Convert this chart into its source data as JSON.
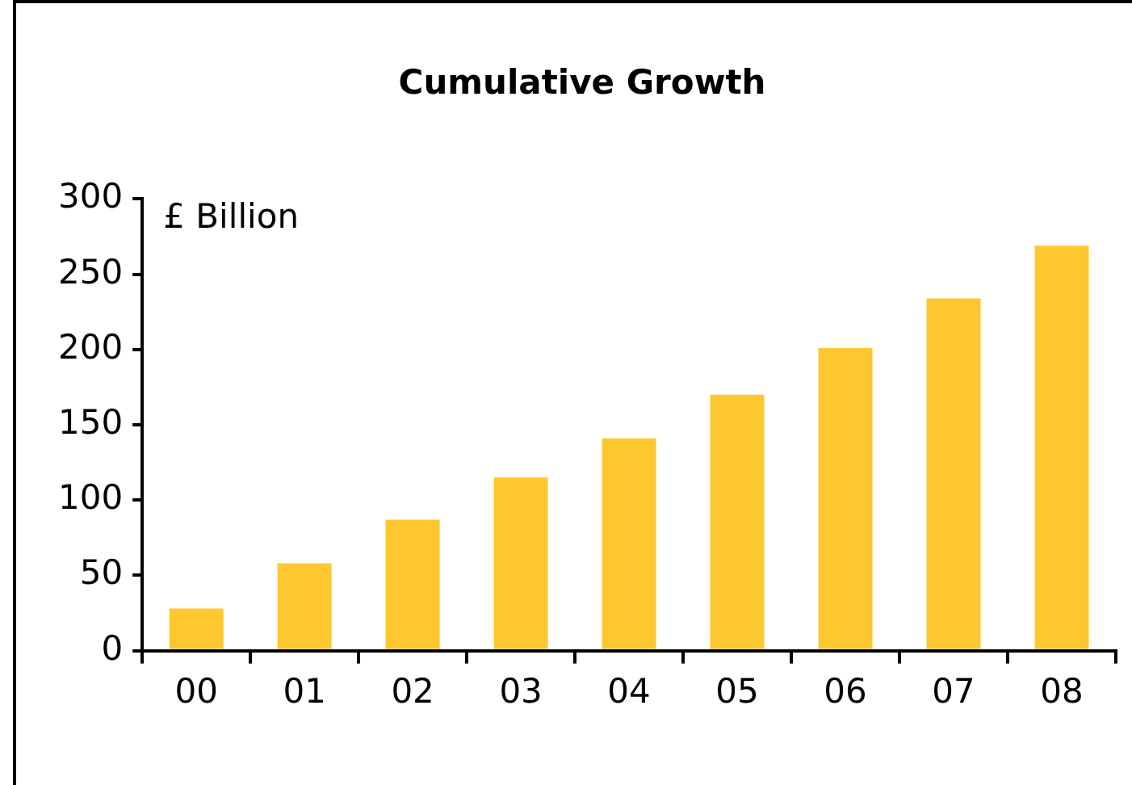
{
  "chart_data": {
    "type": "bar",
    "title": "Cumulative Growth",
    "ylabel": "£ Billion",
    "categories": [
      "00",
      "01",
      "02",
      "03",
      "04",
      "05",
      "06",
      "07",
      "08"
    ],
    "values": [
      28,
      58,
      87,
      115,
      141,
      170,
      201,
      234,
      269
    ],
    "color": "#fdc82f",
    "ylim": [
      0,
      300
    ],
    "yticks": [
      0,
      50,
      100,
      150,
      200,
      250,
      300
    ],
    "grid": false,
    "legend": false
  }
}
